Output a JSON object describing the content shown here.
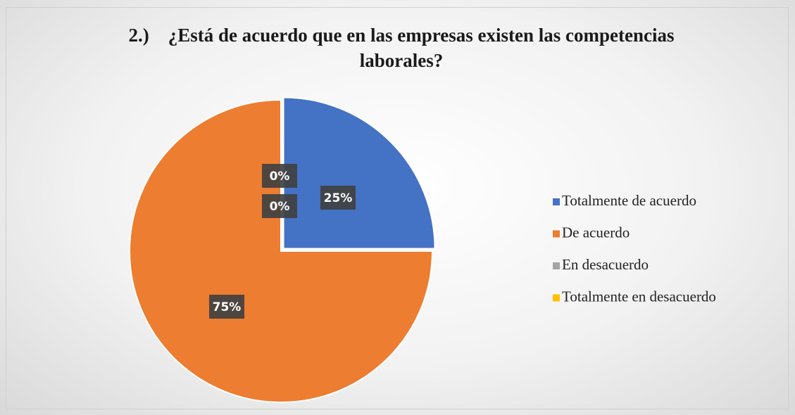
{
  "chart_data": {
    "type": "pie",
    "title": "2.)    ¿Está de acuerdo que en las empresas existen las competencias laborales?",
    "categories": [
      "Totalmente de acuerdo",
      "De acuerdo",
      "En desacuerdo",
      "Totalmente en desacuerdo"
    ],
    "values": [
      25,
      75,
      0,
      0
    ],
    "value_labels": [
      "25%",
      "75%",
      "0%",
      "0%"
    ],
    "colors": [
      "#4472c4",
      "#ed7d31",
      "#a5a5a5",
      "#ffc000"
    ],
    "legend": "right"
  }
}
